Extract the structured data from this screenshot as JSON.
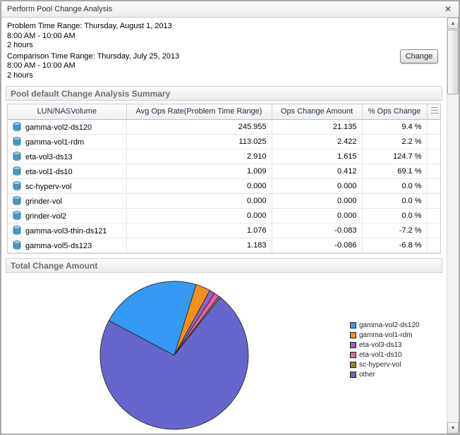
{
  "window": {
    "title": "Perform Pool Change Analysis"
  },
  "icons": {
    "close": "✕",
    "scroll_up": "▲",
    "scroll_down": "▼"
  },
  "header": {
    "problem_label": "Problem Time Range: Thursday, August 1, 2013",
    "problem_time": "8:00 AM - 10:00 AM",
    "problem_duration": "2 hours",
    "comparison_label": "Comparison Time Range: Thursday, July 25, 2013",
    "comparison_time": "8:00 AM - 10:00 AM",
    "comparison_duration": "2 hours",
    "change_button": "Change"
  },
  "summary": {
    "section_title": "Pool default Change Analysis Summary",
    "columns": [
      "LUN/NASVolume",
      "Avg Ops Rate(Problem Time Range)",
      "Ops Change Amount",
      "% Ops Change"
    ],
    "rows": [
      {
        "name": "gamma-vol2-ds120",
        "avg": "245.955",
        "change": "21.135",
        "pct": "9.4 %"
      },
      {
        "name": "gamma-vol1-rdm",
        "avg": "113.025",
        "change": "2.422",
        "pct": "2.2 %"
      },
      {
        "name": "eta-vol3-ds13",
        "avg": "2.910",
        "change": "1.615",
        "pct": "124.7 %"
      },
      {
        "name": "eta-vol1-ds10",
        "avg": "1.009",
        "change": "0.412",
        "pct": "69.1 %"
      },
      {
        "name": "sc-hyperv-vol",
        "avg": "0.000",
        "change": "0.000",
        "pct": "0.0 %"
      },
      {
        "name": "grinder-vol",
        "avg": "0.000",
        "change": "0.000",
        "pct": "0.0 %"
      },
      {
        "name": "grinder-vol2",
        "avg": "0.000",
        "change": "0.000",
        "pct": "0.0 %"
      },
      {
        "name": "gamma-vol3-thin-ds121",
        "avg": "1.076",
        "change": "-0.083",
        "pct": "-7.2 %"
      },
      {
        "name": "gamma-vol5-ds123",
        "avg": "1.183",
        "change": "-0.086",
        "pct": "-6.8 %"
      }
    ]
  },
  "chart_section": {
    "section_title": "Total Change Amount"
  },
  "chart_data": {
    "type": "pie",
    "title": "Total Change Amount",
    "labels": [
      "gamma-vol2-ds120",
      "gamma-vol1-rdm",
      "eta-vol3-ds13",
      "eta-vol1-ds10",
      "sc-hyperv-vol",
      "other"
    ],
    "values": [
      22.0,
      3.2,
      1.2,
      1.1,
      0.4,
      72.1
    ],
    "colors": [
      "#3399F3",
      "#F29018",
      "#9460C8",
      "#E75FA5",
      "#878730",
      "#6666CC"
    ],
    "legend_position": "right",
    "start_angle_deg": -62
  }
}
